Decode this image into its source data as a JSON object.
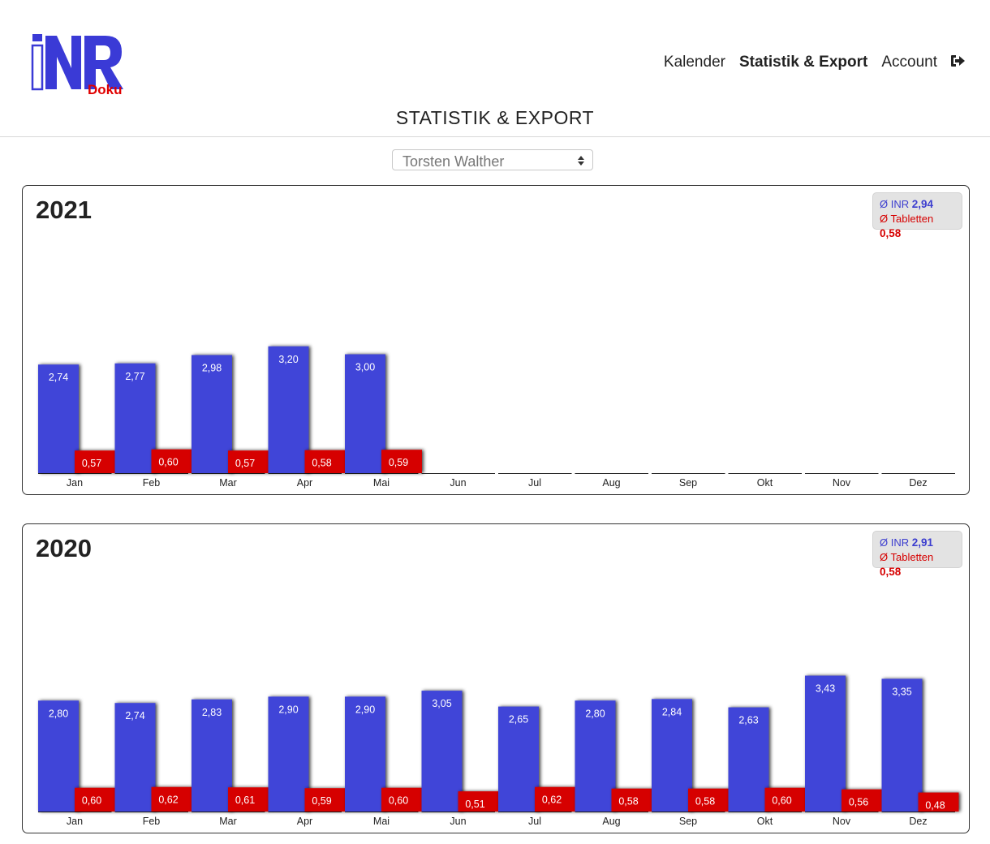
{
  "header": {
    "logo": {
      "text_main": "iNR",
      "text_sub": "Doku"
    },
    "nav": [
      {
        "label": "Kalender",
        "active": false
      },
      {
        "label": "Statistik & Export",
        "active": true
      },
      {
        "label": "Account",
        "active": false
      }
    ],
    "logout_icon": "sign-out-icon"
  },
  "page_title": "STATISTIK & EXPORT",
  "user_select": {
    "value": "Torsten Walther"
  },
  "colors": {
    "inr": "#3f44d8",
    "tabletten": "#d60000"
  },
  "cards": [
    {
      "year": "2021",
      "avg_inr_label": "Ø INR",
      "avg_inr": "2,94",
      "avg_tab_label": "Ø Tabletten",
      "avg_tab": "0,58"
    },
    {
      "year": "2020",
      "avg_inr_label": "Ø INR",
      "avg_inr": "2,91",
      "avg_tab_label": "Ø Tabletten",
      "avg_tab": "0,58"
    }
  ],
  "chart_data": [
    {
      "type": "bar",
      "title": "2021",
      "categories": [
        "Jan",
        "Feb",
        "Mar",
        "Apr",
        "Mai",
        "Jun",
        "Jul",
        "Aug",
        "Sep",
        "Okt",
        "Nov",
        "Dez"
      ],
      "series": [
        {
          "name": "INR",
          "values": [
            2.74,
            2.77,
            2.98,
            3.2,
            3.0,
            null,
            null,
            null,
            null,
            null,
            null,
            null
          ],
          "labels": [
            "2,74",
            "2,77",
            "2,98",
            "3,20",
            "3,00"
          ]
        },
        {
          "name": "Tabletten",
          "values": [
            0.57,
            0.6,
            0.57,
            0.58,
            0.59,
            null,
            null,
            null,
            null,
            null,
            null,
            null
          ],
          "labels": [
            "0,57",
            "0,60",
            "0,57",
            "0,58",
            "0,59"
          ]
        }
      ],
      "ylim": [
        0,
        5.5
      ],
      "grid": false
    },
    {
      "type": "bar",
      "title": "2020",
      "categories": [
        "Jan",
        "Feb",
        "Mar",
        "Apr",
        "Mai",
        "Jun",
        "Jul",
        "Aug",
        "Sep",
        "Okt",
        "Nov",
        "Dez"
      ],
      "series": [
        {
          "name": "INR",
          "values": [
            2.8,
            2.74,
            2.83,
            2.9,
            2.9,
            3.05,
            2.65,
            2.8,
            2.84,
            2.63,
            3.43,
            3.35
          ],
          "labels": [
            "2,80",
            "2,74",
            "2,83",
            "2,90",
            "2,90",
            "3,05",
            "2,65",
            "2,80",
            "2,84",
            "2,63",
            "3,43",
            "3,35"
          ]
        },
        {
          "name": "Tabletten",
          "values": [
            0.6,
            0.62,
            0.61,
            0.59,
            0.6,
            0.51,
            0.62,
            0.58,
            0.58,
            0.6,
            0.56,
            0.48
          ],
          "labels": [
            "0,60",
            "0,62",
            "0,61",
            "0,59",
            "0,60",
            "0,51",
            "0,62",
            "0,58",
            "0,58",
            "0,60",
            "0,56",
            "0,48"
          ]
        }
      ],
      "ylim": [
        0,
        5.5
      ],
      "grid": false
    }
  ]
}
